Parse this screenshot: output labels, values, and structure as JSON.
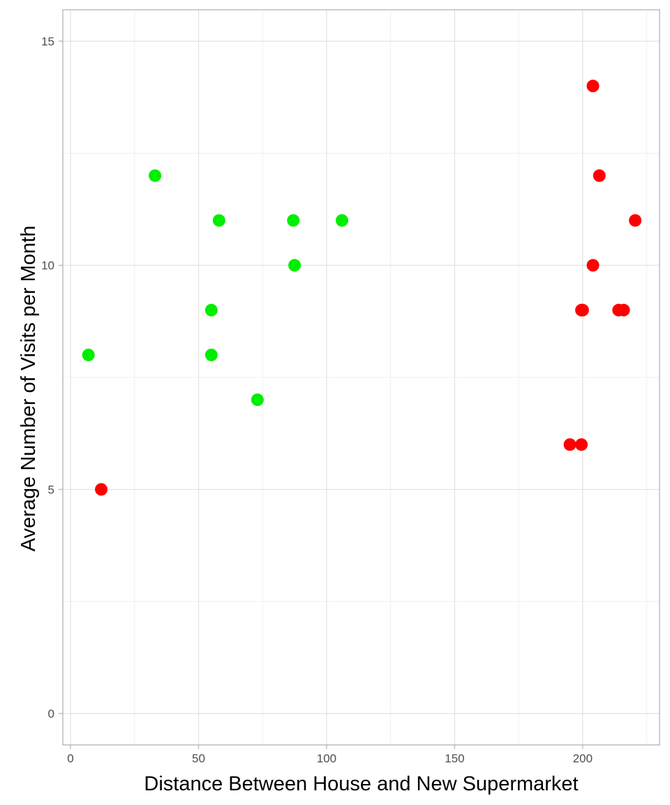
{
  "chart_data": {
    "type": "scatter",
    "title": "",
    "xlabel": "Distance Between House and New Supermarket",
    "ylabel": "Average Number of Visits per Month",
    "xlim": [
      -3,
      230
    ],
    "ylim": [
      -0.7,
      15.7
    ],
    "x_ticks": [
      0,
      50,
      100,
      150,
      200
    ],
    "y_ticks": [
      0,
      5,
      10,
      15
    ],
    "x_minor_ticks": [
      25,
      75,
      125,
      175,
      225
    ],
    "y_minor_ticks": [
      2.5,
      7.5,
      12.5
    ],
    "grid": true,
    "legend": "none",
    "colors": {
      "green": "#00ee00",
      "red": "#ff0000"
    },
    "series": [
      {
        "color": "green",
        "points": [
          {
            "x": 7,
            "y": 8
          },
          {
            "x": 33,
            "y": 12
          },
          {
            "x": 55,
            "y": 9
          },
          {
            "x": 55,
            "y": 8
          },
          {
            "x": 58,
            "y": 11
          },
          {
            "x": 73,
            "y": 7
          },
          {
            "x": 87,
            "y": 11
          },
          {
            "x": 87.5,
            "y": 10
          },
          {
            "x": 106,
            "y": 11
          }
        ]
      },
      {
        "color": "red",
        "points": [
          {
            "x": 12,
            "y": 5
          },
          {
            "x": 195,
            "y": 6
          },
          {
            "x": 199.5,
            "y": 6
          },
          {
            "x": 199.5,
            "y": 9
          },
          {
            "x": 200,
            "y": 9
          },
          {
            "x": 204,
            "y": 10
          },
          {
            "x": 204,
            "y": 14
          },
          {
            "x": 206.5,
            "y": 12
          },
          {
            "x": 214,
            "y": 9
          },
          {
            "x": 216,
            "y": 9
          },
          {
            "x": 220.5,
            "y": 11
          }
        ]
      }
    ]
  }
}
